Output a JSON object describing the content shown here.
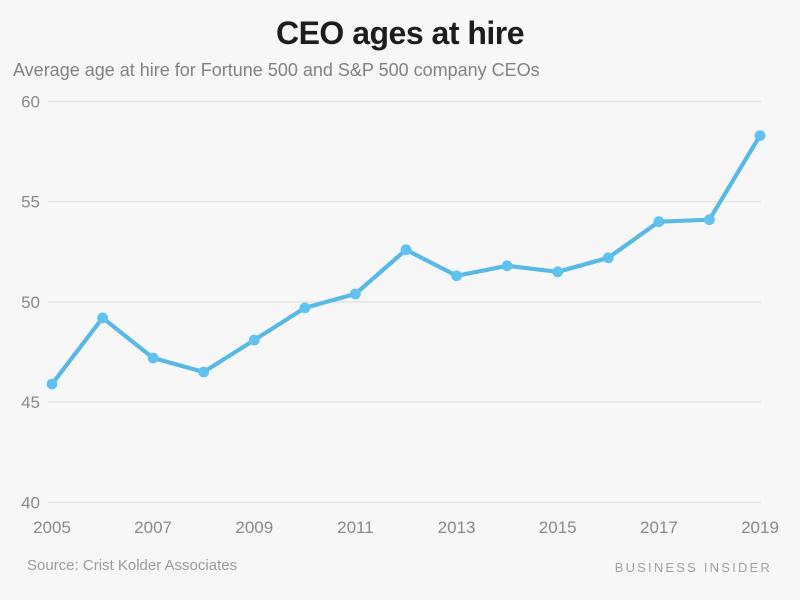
{
  "header": {
    "title": "CEO ages at hire",
    "subtitle": "Average age at hire for Fortune 500 and S&P 500 company CEOs"
  },
  "chart_data": {
    "type": "line",
    "title": "CEO ages at hire",
    "subtitle": "Average age at hire for Fortune 500 and S&P 500 company CEOs",
    "x": [
      2005,
      2006,
      2007,
      2008,
      2009,
      2010,
      2011,
      2012,
      2013,
      2014,
      2015,
      2016,
      2017,
      2018,
      2019
    ],
    "series": [
      {
        "name": "Average age at hire",
        "values": [
          45.9,
          49.2,
          47.2,
          46.5,
          48.1,
          49.7,
          50.4,
          52.6,
          51.3,
          51.8,
          51.5,
          52.2,
          54.0,
          54.1,
          58.3
        ]
      }
    ],
    "xlabel": "",
    "ylabel": "",
    "xlim": [
      2005,
      2019
    ],
    "ylim": [
      40,
      60
    ],
    "yticks": [
      40,
      45,
      50,
      55,
      60
    ],
    "xtick_labels": [
      "2005",
      "2007",
      "2009",
      "2011",
      "2013",
      "2015",
      "2017",
      "2019"
    ],
    "grid": "horizontal-only",
    "legend": "none",
    "line_color": "#58b9e6",
    "marker_color": "#60c2ee"
  },
  "footer": {
    "source": "Source: Crist Kolder Associates",
    "brand": "BUSINESS INSIDER"
  },
  "colors": {
    "background": "#f7f7f7",
    "title": "#1d1d1d",
    "subtitle": "#828282",
    "tick_label": "#8a8a8a",
    "gridline": "#e3e3e3",
    "source": "#9b9b9b",
    "brand": "#a3a3a3"
  }
}
